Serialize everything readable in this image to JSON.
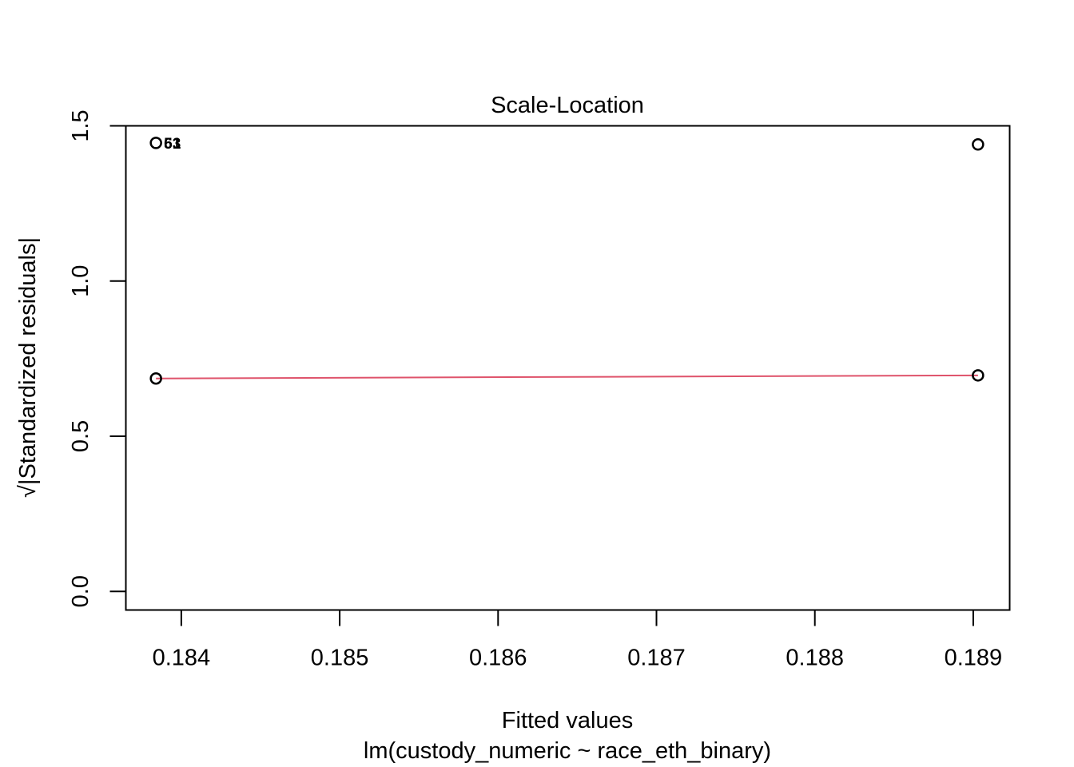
{
  "chart_data": {
    "type": "scatter",
    "title": "Scale-Location",
    "xlabel": "Fitted values",
    "xsublabel": "lm(custody_numeric ~ race_eth_binary)",
    "ylabel": "√|Standardized residuals|",
    "xlim": [
      0.18365,
      0.18923
    ],
    "ylim": [
      -0.06,
      1.5
    ],
    "x_ticks": [
      0.184,
      0.185,
      0.186,
      0.187,
      0.188,
      0.189
    ],
    "x_tick_labels": [
      "0.184",
      "0.185",
      "0.186",
      "0.187",
      "0.188",
      "0.189"
    ],
    "y_ticks": [
      0.0,
      0.5,
      1.0,
      1.5
    ],
    "y_tick_labels": [
      "0.0",
      "0.5",
      "1.0",
      "1.5"
    ],
    "points": [
      {
        "x": 0.18384,
        "y": 1.445
      },
      {
        "x": 0.18384,
        "y": 0.686
      },
      {
        "x": 0.18903,
        "y": 1.44
      },
      {
        "x": 0.18903,
        "y": 0.696
      }
    ],
    "point_labels": [
      {
        "x": 0.18384,
        "y": 1.445,
        "text": "53"
      },
      {
        "x": 0.18384,
        "y": 1.445,
        "text": "61"
      }
    ],
    "smoother": {
      "color": "#DF536B",
      "x": [
        0.18384,
        0.18903
      ],
      "y": [
        0.686,
        0.696
      ]
    },
    "grid": false,
    "legend": "none"
  }
}
